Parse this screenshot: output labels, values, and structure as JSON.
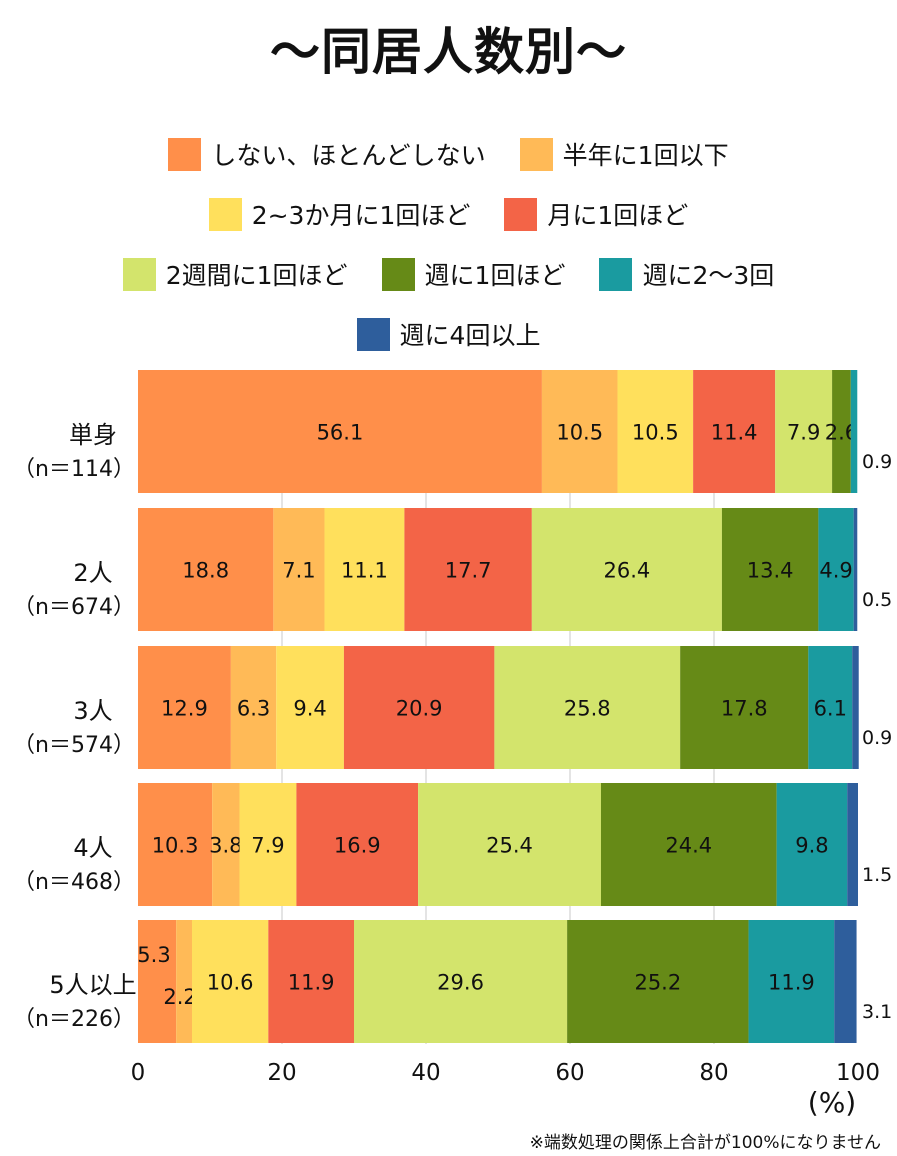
{
  "title": "〜同居人数別〜",
  "note": "※端数処理の関係上合計が100%になりません",
  "legend_rows": [
    [
      0,
      1
    ],
    [
      2,
      3
    ],
    [
      4,
      5,
      6
    ],
    [
      7
    ]
  ],
  "chart_data": {
    "type": "bar",
    "orientation": "horizontal",
    "stacked": true,
    "unit": "(%)",
    "xlim": [
      0,
      100
    ],
    "xticks": [
      "0",
      "20",
      "40",
      "60",
      "80",
      "100"
    ],
    "categories": [
      {
        "name": "単身",
        "n": "（n＝114）"
      },
      {
        "name": "2人",
        "n": "（n＝674）"
      },
      {
        "name": "3人",
        "n": "（n＝574）"
      },
      {
        "name": "4人",
        "n": "（n＝468）"
      },
      {
        "name": "5人以上",
        "n": "（n＝226）"
      }
    ],
    "series": [
      {
        "name": "しない、ほとんどしない",
        "color": "#FF8F4A",
        "values": [
          56.1,
          18.8,
          12.9,
          10.3,
          5.3
        ]
      },
      {
        "name": "半年に1回以下",
        "color": "#FFBA57",
        "values": [
          10.5,
          7.1,
          6.3,
          3.8,
          2.2
        ]
      },
      {
        "name": "2~3か月に1回ほど",
        "color": "#FFE05C",
        "values": [
          10.5,
          11.1,
          9.4,
          7.9,
          10.6
        ]
      },
      {
        "name": "月に1回ほど",
        "color": "#F36447",
        "values": [
          11.4,
          17.7,
          20.9,
          16.9,
          11.9
        ]
      },
      {
        "name": "2週間に1回ほど",
        "color": "#D3E46C",
        "values": [
          7.9,
          26.4,
          25.8,
          25.4,
          29.6
        ]
      },
      {
        "name": "週に1回ほど",
        "color": "#668A17",
        "values": [
          2.6,
          13.4,
          17.8,
          24.4,
          25.2
        ]
      },
      {
        "name": "週に2～3回",
        "color": "#1A9BA0",
        "values": [
          0.9,
          4.9,
          6.1,
          9.8,
          11.9
        ]
      },
      {
        "name": "週に4回以上",
        "color": "#2E5E9C",
        "values": [
          0,
          0.5,
          0.9,
          1.5,
          3.1
        ]
      }
    ],
    "data_labels": [
      [
        "56.1",
        "10.5",
        "10.5",
        "11.4",
        "7.9",
        "2.6",
        "",
        ""
      ],
      [
        "18.8",
        "7.1",
        "11.1",
        "17.7",
        "26.4",
        "13.4",
        "4.9",
        ""
      ],
      [
        "12.9",
        "6.3",
        "9.4",
        "20.9",
        "25.8",
        "17.8",
        "6.1",
        ""
      ],
      [
        "10.3",
        "3.8",
        "7.9",
        "16.9",
        "25.4",
        "24.4",
        "9.8",
        ""
      ],
      [
        "5.3",
        "2.2",
        "10.6",
        "11.9",
        "29.6",
        "25.2",
        "11.9",
        ""
      ]
    ],
    "outside_labels": [
      "0.9",
      "0.5",
      "0.9",
      "1.5",
      "3.1"
    ]
  }
}
